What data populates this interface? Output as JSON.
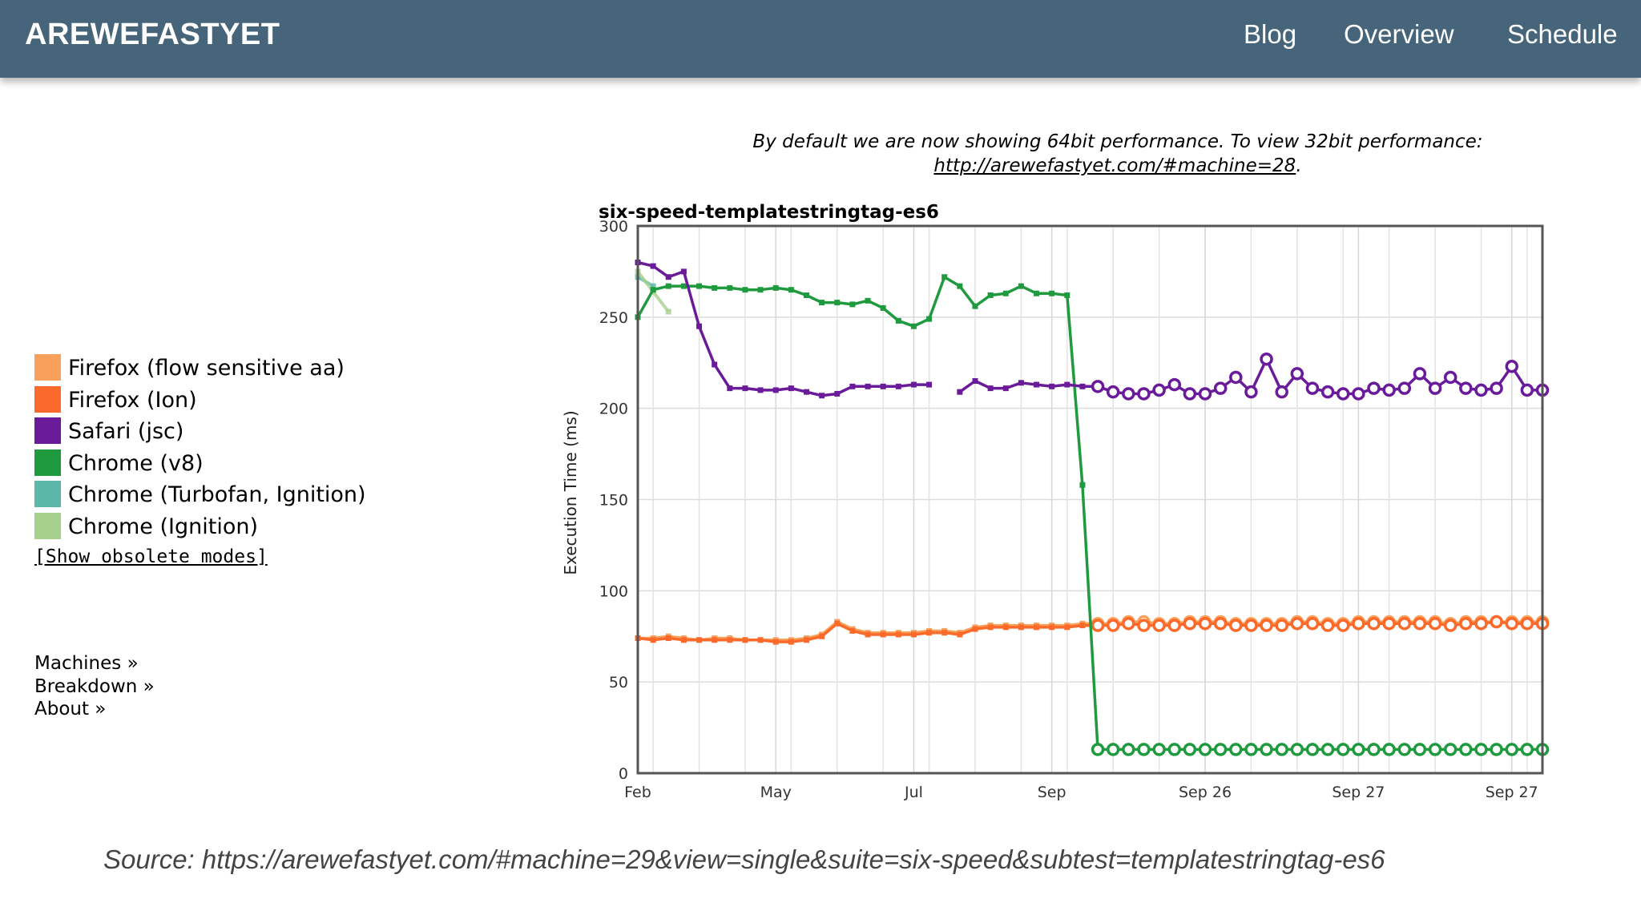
{
  "header": {
    "brand": "AREWEFASTYET",
    "nav": [
      "Blog",
      "Overview",
      "Schedule"
    ]
  },
  "notice": {
    "line1": "By default we are now showing 64bit performance. To view 32bit performance:",
    "link": "http://arewefastyet.com/#machine=28",
    "suffix": "."
  },
  "legend": [
    {
      "label": "Firefox (flow sensitive aa)",
      "color": "#f9a05a"
    },
    {
      "label": "Firefox (Ion)",
      "color": "#fb6a2b"
    },
    {
      "label": "Safari (jsc)",
      "color": "#6a1b9a"
    },
    {
      "label": "Chrome (v8)",
      "color": "#1f9a3e"
    },
    {
      "label": "Chrome (Turbofan, Ignition)",
      "color": "#5bb8a8"
    },
    {
      "label": "Chrome (Ignition)",
      "color": "#a8d08d"
    }
  ],
  "obsolete_link": "[Show obsolete modes]",
  "side_links": [
    "Machines »",
    "Breakdown »",
    "About »"
  ],
  "source": "Source: https://arewefastyet.com/#machine=29&view=single&suite=six-speed&subtest=templatestringtag-es6",
  "chart_data": {
    "type": "line",
    "title": "six-speed-templatestringtag-es6",
    "xlabel": "",
    "ylabel": "Execution Time (ms)",
    "ylim": [
      0,
      300
    ],
    "yticks": [
      0,
      50,
      100,
      150,
      200,
      250,
      300
    ],
    "xlim": [
      0,
      59
    ],
    "xticks": [
      {
        "x": 0,
        "label": "Feb"
      },
      {
        "x": 9,
        "label": "May"
      },
      {
        "x": 18,
        "label": "Jul"
      },
      {
        "x": 27,
        "label": "Sep"
      },
      {
        "x": 37,
        "label": "Sep 26"
      },
      {
        "x": 47,
        "label": "Sep 27"
      },
      {
        "x": 57,
        "label": "Sep 27"
      }
    ],
    "grid": true,
    "open_markers_from": 30,
    "series": [
      {
        "name": "Firefox (flow sensitive aa)",
        "color": "#f9a05a",
        "values": [
          74,
          74,
          75,
          74,
          73,
          74,
          74,
          73,
          73,
          73,
          73,
          74,
          76,
          83,
          79,
          77,
          77,
          77,
          77,
          78,
          78,
          77,
          80,
          81,
          81,
          81,
          81,
          81,
          81,
          82,
          82,
          82,
          83,
          83,
          82,
          82,
          83,
          83,
          83,
          82,
          82,
          82,
          82,
          83,
          83,
          82,
          82,
          83,
          83,
          83,
          83,
          83,
          83,
          82,
          83,
          83,
          83,
          83,
          83,
          83
        ]
      },
      {
        "name": "Firefox (Ion)",
        "color": "#fb6a2b",
        "values": [
          74,
          73,
          74,
          73,
          73,
          73,
          73,
          73,
          73,
          72,
          72,
          73,
          75,
          82,
          78,
          76,
          76,
          76,
          76,
          77,
          77,
          76,
          79,
          80,
          80,
          80,
          80,
          80,
          80,
          81,
          81,
          81,
          82,
          81,
          81,
          81,
          82,
          82,
          82,
          81,
          81,
          81,
          81,
          82,
          82,
          81,
          81,
          82,
          82,
          82,
          82,
          82,
          82,
          81,
          82,
          82,
          83,
          82,
          82,
          82
        ]
      },
      {
        "name": "Safari (jsc)",
        "color": "#6a1b9a",
        "values": [
          280,
          278,
          272,
          275,
          245,
          224,
          211,
          211,
          210,
          210,
          211,
          209,
          207,
          208,
          212,
          212,
          212,
          212,
          213,
          213,
          null,
          209,
          215,
          211,
          211,
          214,
          213,
          212,
          213,
          212,
          212,
          209,
          208,
          208,
          210,
          213,
          208,
          208,
          211,
          217,
          209,
          227,
          209,
          219,
          211,
          209,
          208,
          208,
          211,
          210,
          211,
          219,
          211,
          217,
          211,
          210,
          211,
          223,
          210,
          210
        ]
      },
      {
        "name": "Chrome (v8)",
        "color": "#1f9a3e",
        "values": [
          250,
          265,
          267,
          267,
          267,
          266,
          266,
          265,
          265,
          266,
          265,
          262,
          258,
          258,
          257,
          259,
          255,
          248,
          245,
          249,
          272,
          267,
          256,
          262,
          263,
          267,
          263,
          263,
          262,
          158,
          13,
          13,
          13,
          13,
          13,
          13,
          13,
          13,
          13,
          13,
          13,
          13,
          13,
          13,
          13,
          13,
          13,
          13,
          13,
          13,
          13,
          13,
          13,
          13,
          13,
          13,
          13,
          13,
          13,
          13
        ]
      },
      {
        "name": "Chrome (Turbofan, Ignition)",
        "color": "#5bb8a8",
        "values": [
          272,
          267,
          null,
          null,
          null,
          null,
          null,
          null,
          null,
          null,
          null,
          null,
          null,
          null,
          null,
          null,
          null,
          null,
          null,
          null,
          null,
          null,
          null,
          null,
          null,
          null,
          null,
          null,
          null,
          null,
          null,
          null,
          null,
          null,
          null,
          null,
          null,
          null,
          null,
          null,
          null,
          null,
          null,
          null,
          null,
          null,
          null,
          null,
          null,
          null,
          null,
          null,
          null,
          null,
          null,
          null,
          null,
          null,
          null,
          null
        ]
      },
      {
        "name": "Chrome (Ignition)",
        "color": "#a8d08d",
        "values": [
          275,
          264,
          253,
          null,
          null,
          null,
          null,
          null,
          null,
          null,
          null,
          null,
          null,
          null,
          null,
          null,
          null,
          null,
          null,
          null,
          null,
          null,
          null,
          null,
          null,
          null,
          null,
          null,
          null,
          null,
          null,
          null,
          null,
          null,
          null,
          null,
          null,
          null,
          null,
          null,
          null,
          null,
          null,
          null,
          null,
          null,
          null,
          null,
          null,
          null,
          null,
          null,
          null,
          null,
          null,
          null,
          null,
          null,
          null,
          null
        ]
      }
    ]
  }
}
